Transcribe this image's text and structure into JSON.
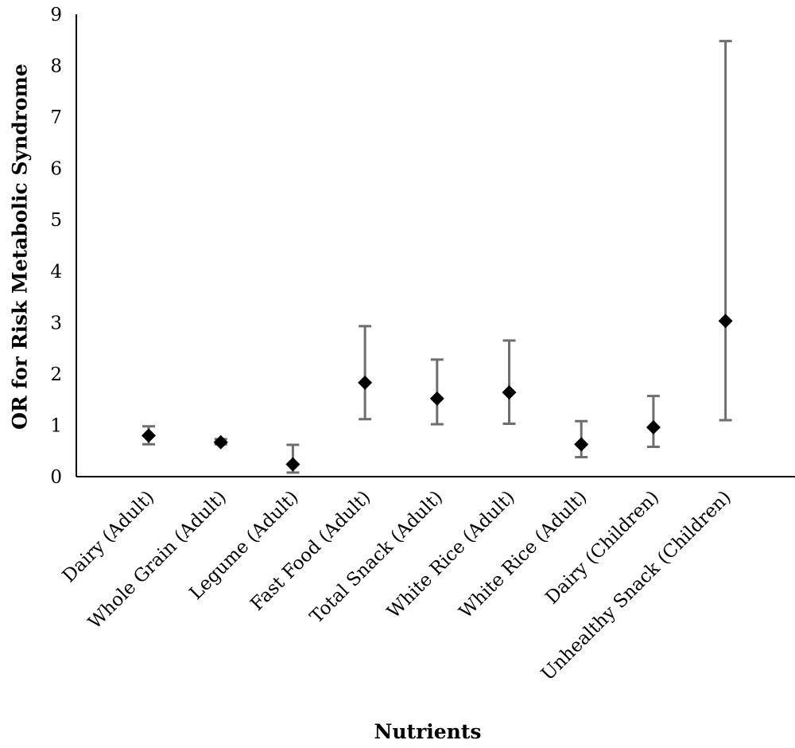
{
  "chart_data": {
    "type": "scatter",
    "title": "",
    "xlabel": "Nutrients",
    "ylabel": "OR for Risk Metabolic Syndrome",
    "ylim": [
      0,
      9
    ],
    "yticks": [
      0,
      1,
      2,
      3,
      4,
      5,
      6,
      7,
      8,
      9
    ],
    "grid": false,
    "legend": "none",
    "categories": [
      "Dairy (Adult)",
      "Whole Grain (Adult)",
      "Legume (Adult)",
      "Fast Food (Adult)",
      "Total Snack (Adult)",
      "White Rice (Adult)",
      "White Rice (Adult)",
      "Dairy (Children)",
      "Unhealthy Snack (Children)"
    ],
    "series": [
      {
        "values": [
          0.8,
          0.67,
          0.24,
          1.83,
          1.52,
          1.64,
          0.63,
          0.96,
          3.03
        ],
        "lower": [
          0.63,
          0.63,
          0.08,
          1.12,
          1.02,
          1.03,
          0.38,
          0.58,
          1.1
        ],
        "upper": [
          0.98,
          0.73,
          0.62,
          2.93,
          2.28,
          2.65,
          1.08,
          1.57,
          8.48
        ]
      }
    ],
    "marker": "diamond",
    "marker_color": "#000000",
    "error_bar_color": "#6e6e6e"
  }
}
